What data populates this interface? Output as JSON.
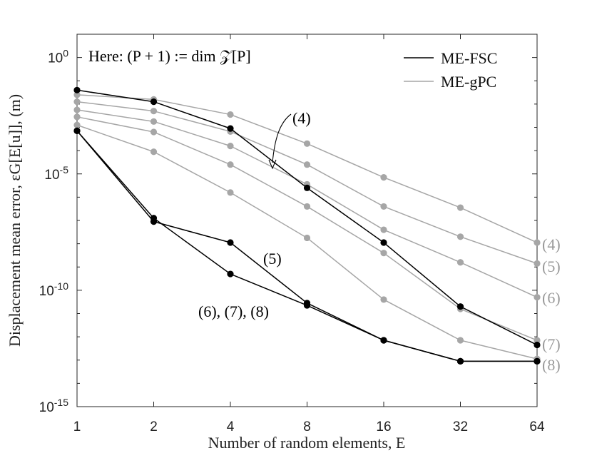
{
  "chart_data": {
    "type": "line",
    "x_scale": "log2",
    "y_scale": "log10",
    "x_ticks": [
      1,
      2,
      4,
      8,
      16,
      32,
      64
    ],
    "x_tick_labels": [
      "1",
      "2",
      "4",
      "8",
      "16",
      "32",
      "64"
    ],
    "y_ticks": [
      1e-15,
      1e-10,
      1e-05,
      1
    ],
    "y_tick_labels": [
      {
        "base": "10",
        "exp": "-15"
      },
      {
        "base": "10",
        "exp": "-10"
      },
      {
        "base": "10",
        "exp": "-5"
      },
      {
        "base": "10",
        "exp": "0"
      }
    ],
    "xlim": [
      1,
      64
    ],
    "ylim": [
      1e-15,
      10
    ],
    "xlabel": "Number of random elements, E",
    "ylabel": "Displacement mean error, εG[E[u]], (m)",
    "grid": false,
    "legend": {
      "position": "top-right",
      "entries": [
        "ME-FSC",
        "ME-gPC"
      ]
    },
    "colors": {
      "ME-FSC": "#000000",
      "ME-gPC": "#a6a6a6"
    },
    "series": [
      {
        "group": "ME-gPC",
        "label": "(4)",
        "x": [
          1,
          2,
          4,
          8,
          16,
          32,
          64
        ],
        "y": [
          0.0251,
          0.0158,
          0.00355,
          0.0002,
          7.08e-06,
          3.55e-07,
          1.12e-08
        ]
      },
      {
        "group": "ME-gPC",
        "label": "(5)",
        "x": [
          1,
          2,
          4,
          8,
          16,
          32,
          64
        ],
        "y": [
          0.0126,
          0.00501,
          0.000661,
          2.51e-05,
          3.98e-07,
          2e-08,
          1.41e-09
        ]
      },
      {
        "group": "ME-gPC",
        "label": "(6)",
        "x": [
          1,
          2,
          4,
          8,
          16,
          32,
          64
        ],
        "y": [
          0.00562,
          0.00178,
          0.000158,
          3.55e-06,
          3.98e-08,
          1.58e-09,
          5.01e-11
        ]
      },
      {
        "group": "ME-gPC",
        "label": "(7)",
        "x": [
          1,
          2,
          4,
          8,
          16,
          32,
          64
        ],
        "y": [
          0.00282,
          0.000631,
          2.51e-05,
          3.98e-07,
          3.98e-09,
          1.58e-11,
          7.08e-13
        ]
      },
      {
        "group": "ME-gPC",
        "label": "(8)",
        "x": [
          1,
          2,
          4,
          8,
          16,
          32,
          64
        ],
        "y": [
          0.00126,
          8.91e-05,
          1.58e-06,
          1.78e-08,
          3.98e-11,
          7.08e-13,
          1.12e-13
        ]
      },
      {
        "group": "ME-FSC",
        "label": "(4)",
        "x": [
          1,
          2,
          4,
          8,
          16,
          32,
          64
        ],
        "y": [
          0.0398,
          0.0126,
          0.000891,
          2.51e-06,
          1.12e-08,
          2e-11,
          4.47e-13
        ]
      },
      {
        "group": "ME-FSC",
        "label": "(5)",
        "x": [
          1,
          2,
          4,
          8,
          16,
          32,
          64
        ],
        "y": [
          0.000708,
          8.91e-08,
          1.12e-08,
          2.82e-11,
          7.08e-13,
          8.91e-14,
          8.91e-14
        ]
      },
      {
        "group": "ME-FSC",
        "label": "(6), (7), (8)",
        "x": [
          1,
          2,
          4,
          8,
          16,
          32,
          64
        ],
        "y": [
          0.000708,
          1.26e-07,
          5.01e-10,
          2.24e-11,
          7.08e-13,
          8.91e-14,
          8.91e-14
        ]
      }
    ],
    "annotations": {
      "note": "Here: (P + 1) := dim 𝒵[P]",
      "fsc_4": "(4)",
      "fsc_5": "(5)",
      "fsc_678": "(6), (7), (8)"
    },
    "right_labels": [
      "(4)",
      "(5)",
      "(6)",
      "(7)",
      "(8)"
    ]
  }
}
